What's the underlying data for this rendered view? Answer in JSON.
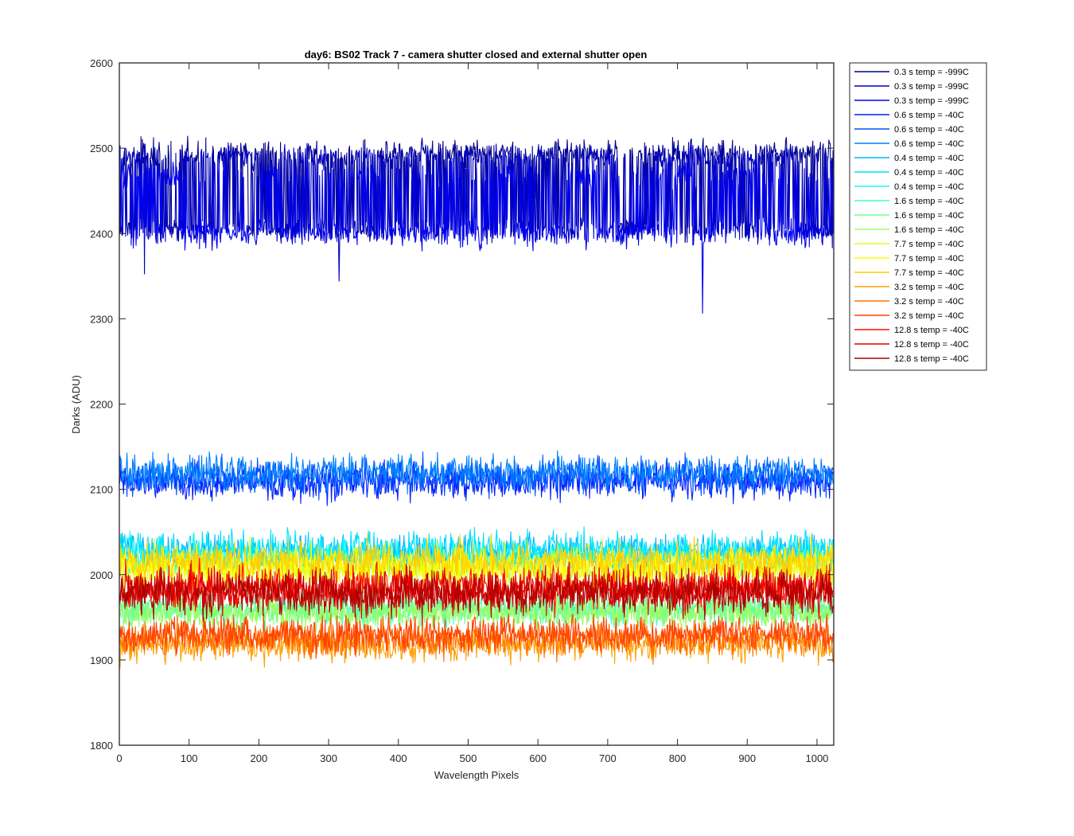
{
  "chart_data": {
    "type": "line",
    "title": "day6: BS02  Track 7 - camera shutter closed and external shutter open",
    "xlabel": "Wavelength Pixels",
    "ylabel": "Darks (ADU)",
    "xlim": [
      0,
      1024
    ],
    "ylim": [
      1800,
      2600
    ],
    "xticks": [
      0,
      100,
      200,
      300,
      400,
      500,
      600,
      700,
      800,
      900,
      1000
    ],
    "yticks": [
      1800,
      1900,
      2000,
      2100,
      2200,
      2300,
      2400,
      2500,
      2600
    ],
    "grid": false,
    "legend_position": "outside-top-right",
    "n_points_per_series": 1024,
    "series": [
      {
        "name": "0.3 s temp = -999C",
        "color": "#00008F",
        "mode": "bimodal",
        "low": 2405,
        "high": 2495,
        "noise": 7,
        "pattern": [
          0,
          1,
          0,
          1,
          0,
          1,
          1,
          1,
          0,
          1,
          0,
          1,
          0,
          1,
          1,
          1,
          1,
          1,
          1,
          1,
          0,
          1,
          1,
          1,
          1,
          0,
          1,
          1,
          1,
          1,
          1,
          0,
          1,
          1,
          1,
          1
        ]
      },
      {
        "name": "0.3 s temp = -999C",
        "color": "#0000BF",
        "mode": "bimodal",
        "low": 2403,
        "high": 2490,
        "noise": 7,
        "pattern": [
          1,
          1,
          0,
          0,
          0,
          1,
          1,
          0,
          1,
          1,
          1,
          0,
          1,
          1,
          1,
          0,
          0,
          1,
          1,
          1,
          1,
          1,
          0,
          1,
          1,
          0,
          0,
          1,
          1,
          1,
          1,
          1,
          1,
          1,
          0,
          0
        ]
      },
      {
        "name": "0.3 s temp = -999C",
        "color": "#0000EF",
        "mode": "bimodal",
        "low": 2400,
        "high": 2470,
        "noise": 8,
        "pattern": [
          1,
          1,
          1,
          0,
          0,
          0,
          0,
          1,
          0,
          0,
          0,
          0,
          1,
          0,
          0,
          0,
          0,
          0,
          0,
          1,
          0,
          0,
          0,
          1,
          0,
          0,
          0,
          0,
          1,
          0,
          1,
          1,
          0,
          0,
          0,
          0
        ]
      },
      {
        "name": "0.6 s temp = -40C",
        "color": "#0020FF",
        "mean": 2108,
        "noise": 10
      },
      {
        "name": "0.6 s temp = -40C",
        "color": "#0050FF",
        "mean": 2115,
        "noise": 10
      },
      {
        "name": "0.6 s temp = -40C",
        "color": "#0080FF",
        "mean": 2120,
        "noise": 10
      },
      {
        "name": "0.4 s temp = -40C",
        "color": "#00AFFF",
        "mean": 2025,
        "noise": 10
      },
      {
        "name": "0.4 s temp = -40C",
        "color": "#00DFFF",
        "mean": 2030,
        "noise": 10
      },
      {
        "name": "0.4 s temp = -40C",
        "color": "#10FFEF",
        "mean": 2020,
        "noise": 10
      },
      {
        "name": "1.6 s temp = -40C",
        "color": "#40FFBF",
        "mean": 1960,
        "noise": 9
      },
      {
        "name": "1.6 s temp = -40C",
        "color": "#70FF8F",
        "mean": 1958,
        "noise": 9
      },
      {
        "name": "1.6 s temp = -40C",
        "color": "#9FFF60",
        "mean": 1955,
        "noise": 9
      },
      {
        "name": "7.7 s temp = -40C",
        "color": "#CFFF30",
        "mean": 2005,
        "noise": 12
      },
      {
        "name": "7.7 s temp = -40C",
        "color": "#FFFF00",
        "mean": 2010,
        "noise": 12
      },
      {
        "name": "7.7 s temp = -40C",
        "color": "#FFCF00",
        "mean": 2015,
        "noise": 12
      },
      {
        "name": "3.2 s temp = -40C",
        "color": "#FF9F00",
        "mean": 1918,
        "noise": 10
      },
      {
        "name": "3.2 s temp = -40C",
        "color": "#FF7000",
        "mean": 1925,
        "noise": 10
      },
      {
        "name": "3.2 s temp = -40C",
        "color": "#FF4000",
        "mean": 1930,
        "noise": 10
      },
      {
        "name": "12.8 s temp = -40C",
        "color": "#FF1000",
        "mean": 1985,
        "noise": 12
      },
      {
        "name": "12.8 s temp = -40C",
        "color": "#DF0000",
        "mean": 1982,
        "noise": 12
      },
      {
        "name": "12.8 s temp = -40C",
        "color": "#AF0000",
        "mean": 1978,
        "noise": 12
      }
    ]
  }
}
